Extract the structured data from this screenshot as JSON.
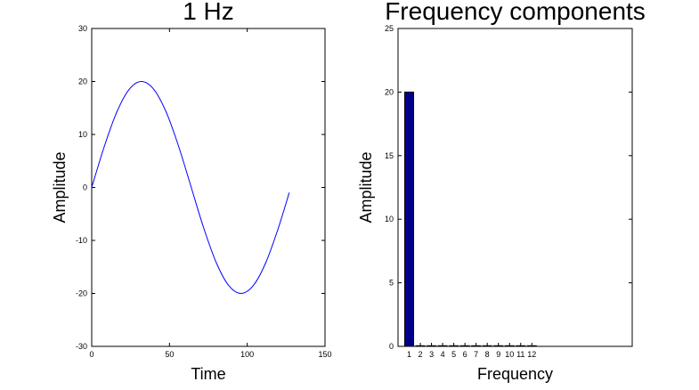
{
  "chart_data": [
    {
      "type": "line",
      "title": "1 Hz",
      "xlabel": "Time",
      "ylabel": "Amplitude",
      "xlim": [
        0,
        150
      ],
      "ylim": [
        -30,
        30
      ],
      "xticks": [
        0,
        50,
        100,
        150
      ],
      "yticks": [
        -30,
        -20,
        -10,
        0,
        10,
        20,
        30
      ],
      "series": [
        {
          "color": "#0000ff",
          "x": [
            0,
            8,
            16,
            24,
            32,
            40,
            48,
            56,
            64,
            72,
            80,
            88,
            96,
            104,
            112,
            120,
            127
          ],
          "y": [
            0,
            7.65,
            14.14,
            18.48,
            20,
            18.48,
            14.14,
            7.65,
            0,
            -7.65,
            -14.14,
            -18.48,
            -20,
            -18.48,
            -14.14,
            -7.65,
            -0.98
          ]
        }
      ],
      "grid": false
    },
    {
      "type": "bar",
      "title": "Frequency components",
      "xlabel": "Frequency",
      "ylabel": "Amplitude",
      "ylim": [
        0,
        25
      ],
      "xlim": [
        0,
        21
      ],
      "yticks": [
        0,
        5,
        10,
        15,
        20,
        25
      ],
      "categories": [
        "1",
        "2",
        "3",
        "4",
        "5",
        "6",
        "7",
        "8",
        "9",
        "10",
        "11",
        "12"
      ],
      "values": [
        20,
        0.05,
        0.05,
        0.05,
        0.05,
        0.05,
        0.05,
        0.05,
        0.05,
        0.05,
        0.05,
        0.05
      ],
      "bar_color": "#00008b",
      "grid": false
    }
  ]
}
